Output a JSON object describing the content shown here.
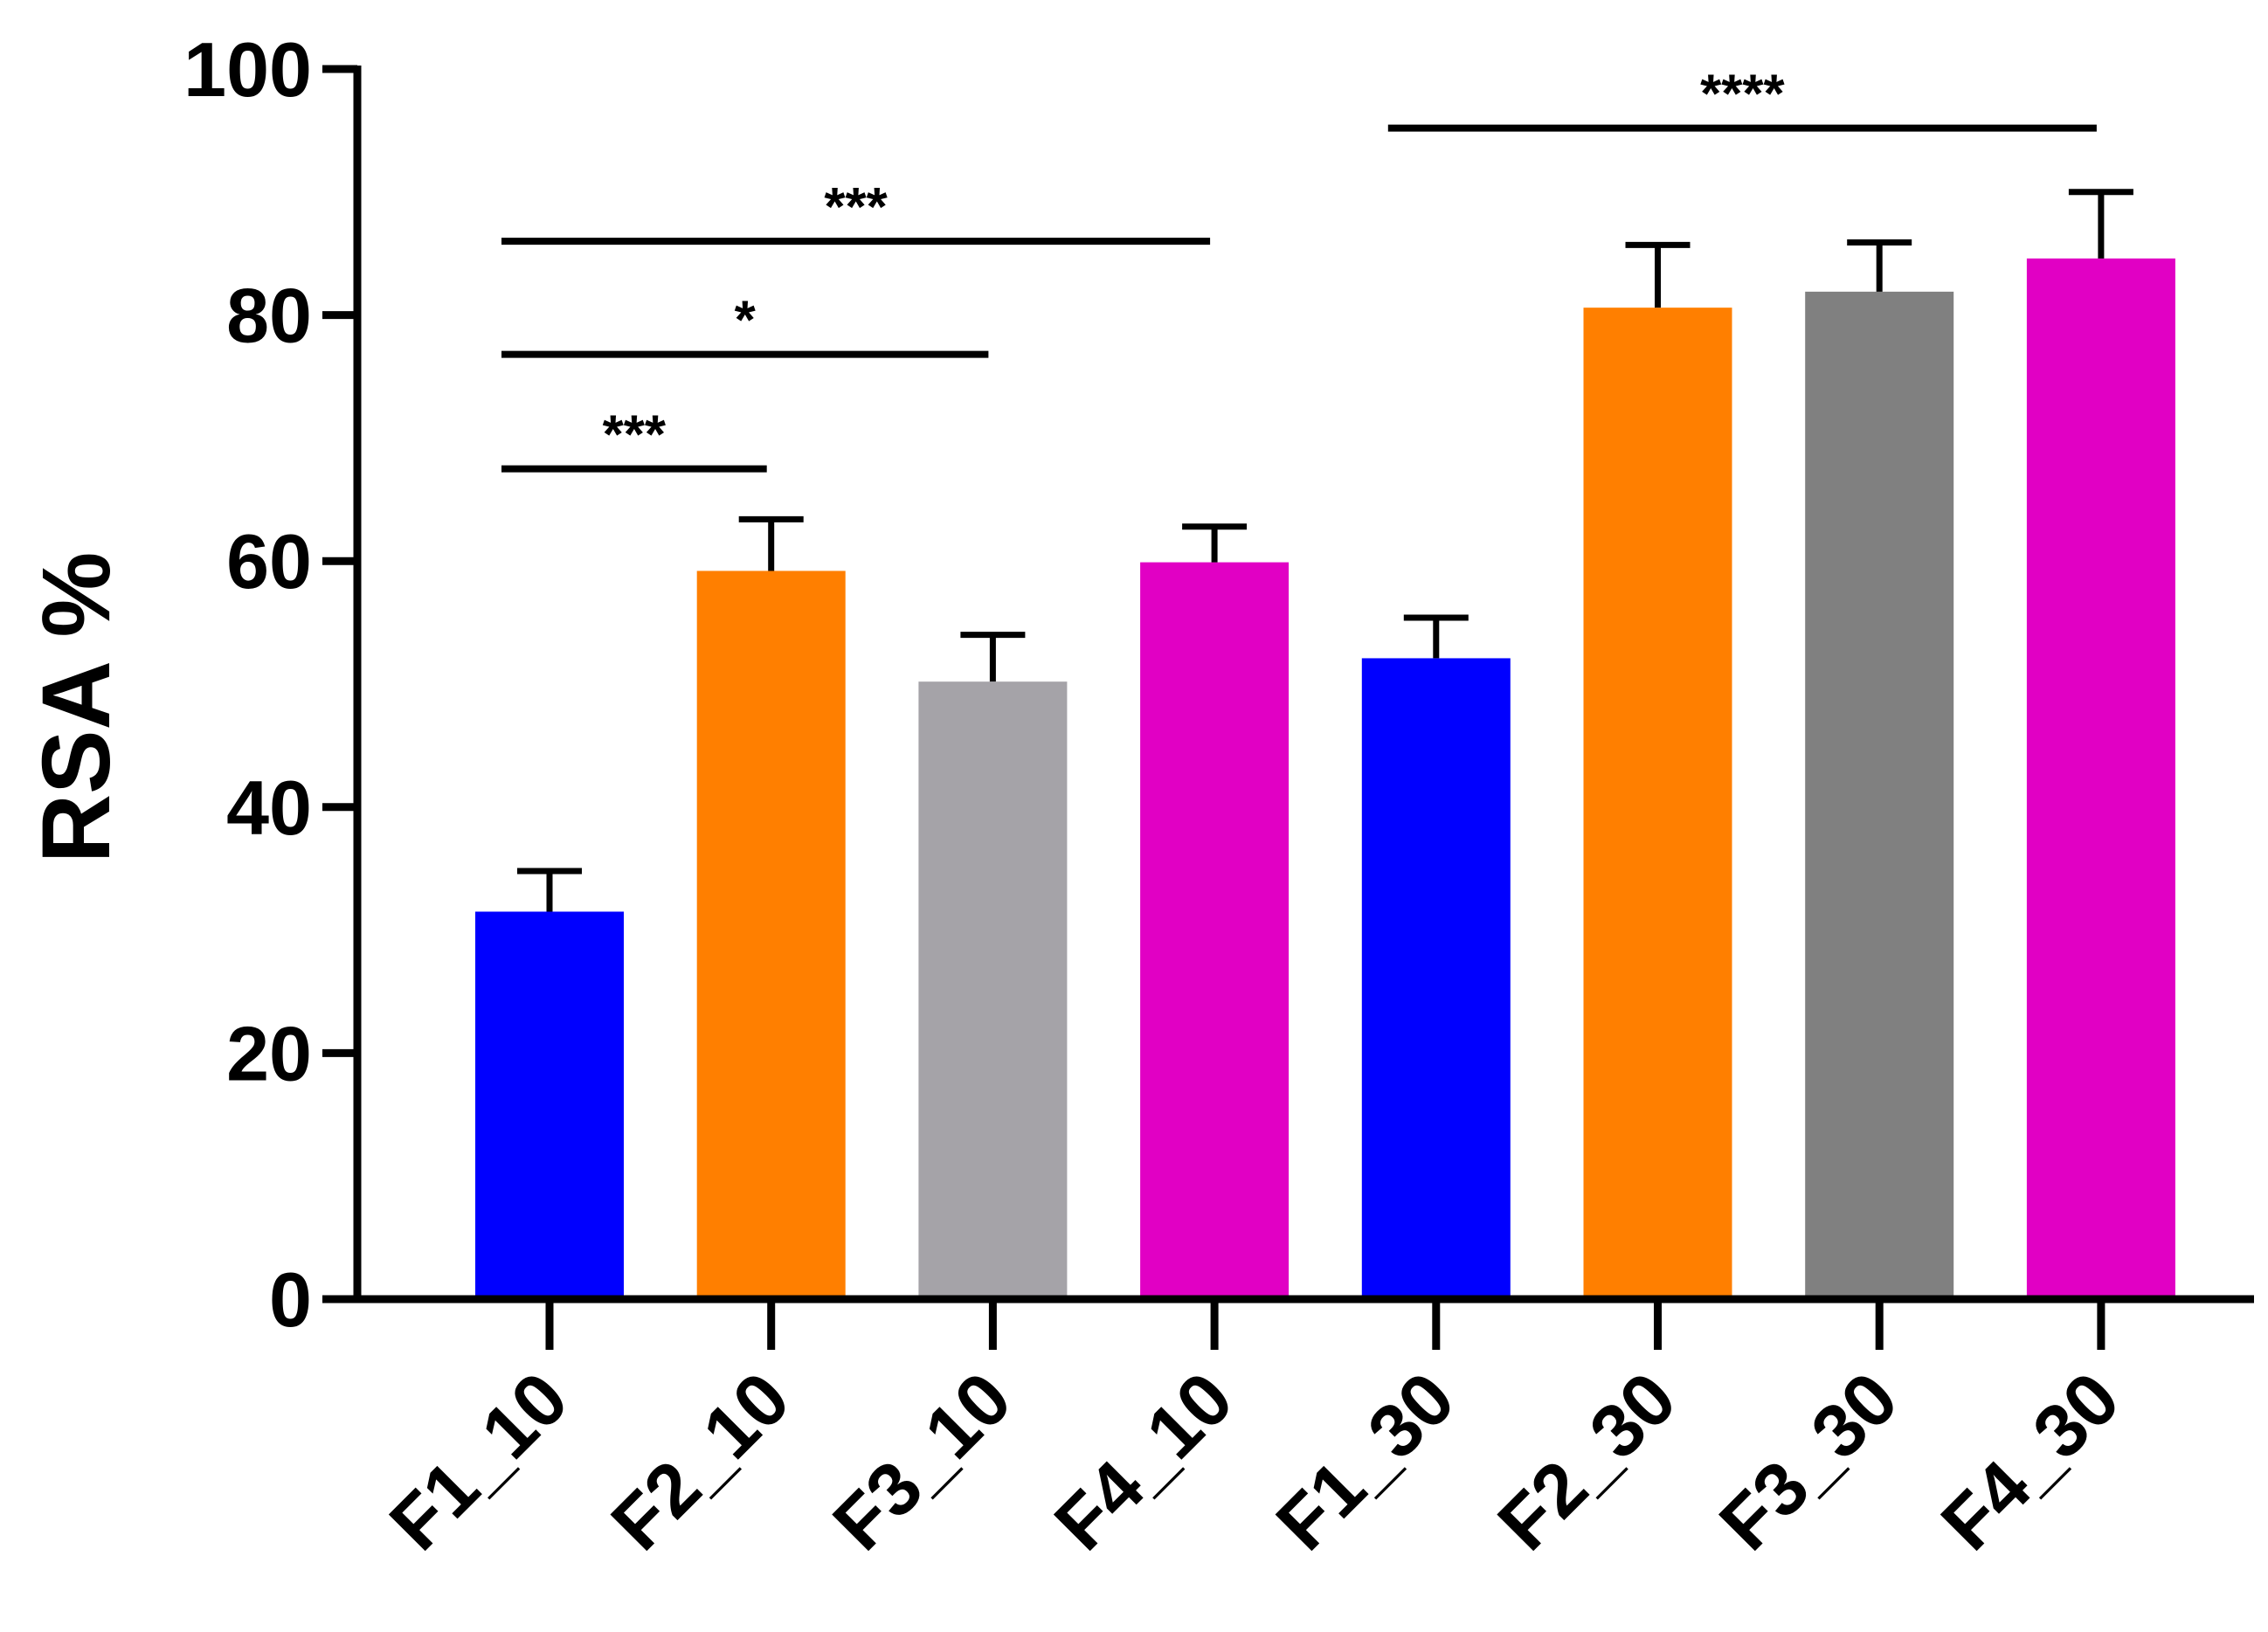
{
  "chart_data": {
    "type": "bar",
    "title": "",
    "xlabel": "",
    "ylabel": "RSA %",
    "ylim": [
      0,
      100
    ],
    "yticks": [
      0,
      20,
      40,
      60,
      80,
      100
    ],
    "grid": false,
    "categories": [
      "F1_10",
      "F2_10",
      "F3_10",
      "F4_10",
      "F1_30",
      "F2_30",
      "F3_30",
      "F4_30"
    ],
    "values": [
      31.5,
      59.2,
      50.2,
      59.9,
      52.1,
      80.6,
      81.9,
      84.6
    ],
    "errors": [
      3.3,
      4.2,
      3.8,
      2.9,
      3.3,
      5.1,
      4.0,
      5.4
    ],
    "colors": [
      "#0000ff",
      "#ff7f00",
      "#a5a3a8",
      "#e100c4",
      "#0000ff",
      "#ff7f00",
      "#808080",
      "#e100c4"
    ],
    "significance": [
      {
        "from": "F1_10",
        "to": "F2_10",
        "y": 67.5,
        "label": "***"
      },
      {
        "from": "F1_10",
        "to": "F3_10",
        "y": 76.8,
        "label": "*"
      },
      {
        "from": "F1_10",
        "to": "F4_10",
        "y": 86.0,
        "label": "***"
      },
      {
        "from": "F1_30",
        "to": "F4_30",
        "y": 95.2,
        "label": "****"
      }
    ]
  }
}
